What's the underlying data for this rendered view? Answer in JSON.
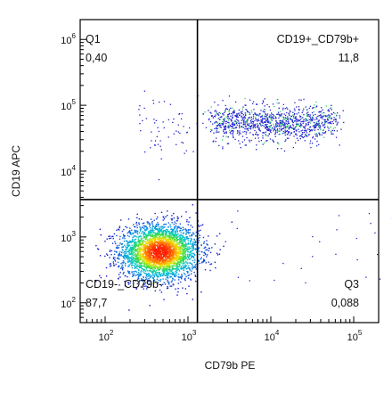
{
  "chart_data": {
    "type": "scatter",
    "xlabel": "CD79b PE",
    "ylabel": "CD19 APC",
    "x_scale": "log",
    "y_scale": "log",
    "xlim": [
      50,
      200000
    ],
    "ylim": [
      50,
      2000000
    ],
    "x_ticks": [
      {
        "base": "10",
        "exp": "2",
        "value": 100
      },
      {
        "base": "10",
        "exp": "3",
        "value": 1000
      },
      {
        "base": "10",
        "exp": "4",
        "value": 10000
      },
      {
        "base": "10",
        "exp": "5",
        "value": 100000
      }
    ],
    "y_ticks": [
      {
        "base": "10",
        "exp": "2",
        "value": 100
      },
      {
        "base": "10",
        "exp": "3",
        "value": 1000
      },
      {
        "base": "10",
        "exp": "4",
        "value": 10000
      },
      {
        "base": "10",
        "exp": "5",
        "value": 100000
      },
      {
        "base": "10",
        "exp": "6",
        "value": 1000000
      }
    ],
    "gates": {
      "x": 1300,
      "y": 3700
    },
    "quadrants": [
      {
        "position": "top-left",
        "name": "Q1",
        "value": "0,40"
      },
      {
        "position": "top-right",
        "name": "CD19+_CD79b+",
        "value": "11,8"
      },
      {
        "position": "bottom-left",
        "name": "CD19-_CD79b-",
        "value": "87,7"
      },
      {
        "position": "bottom-right",
        "name": "Q3",
        "value": "0,088"
      }
    ],
    "populations": [
      {
        "quadrant": "bottom-left",
        "x_center": 450,
        "y_center": 600,
        "percent": 87.7
      },
      {
        "quadrant": "top-right",
        "x_center": 11000,
        "y_center": 55000,
        "percent": 11.8
      }
    ],
    "grid": false,
    "colors": {
      "density_low": "#1a10c8",
      "density_mid": "#00c8c8",
      "density_high": "#ff2000",
      "sparse": "#2020d0",
      "gate_lines": "#000000"
    }
  }
}
